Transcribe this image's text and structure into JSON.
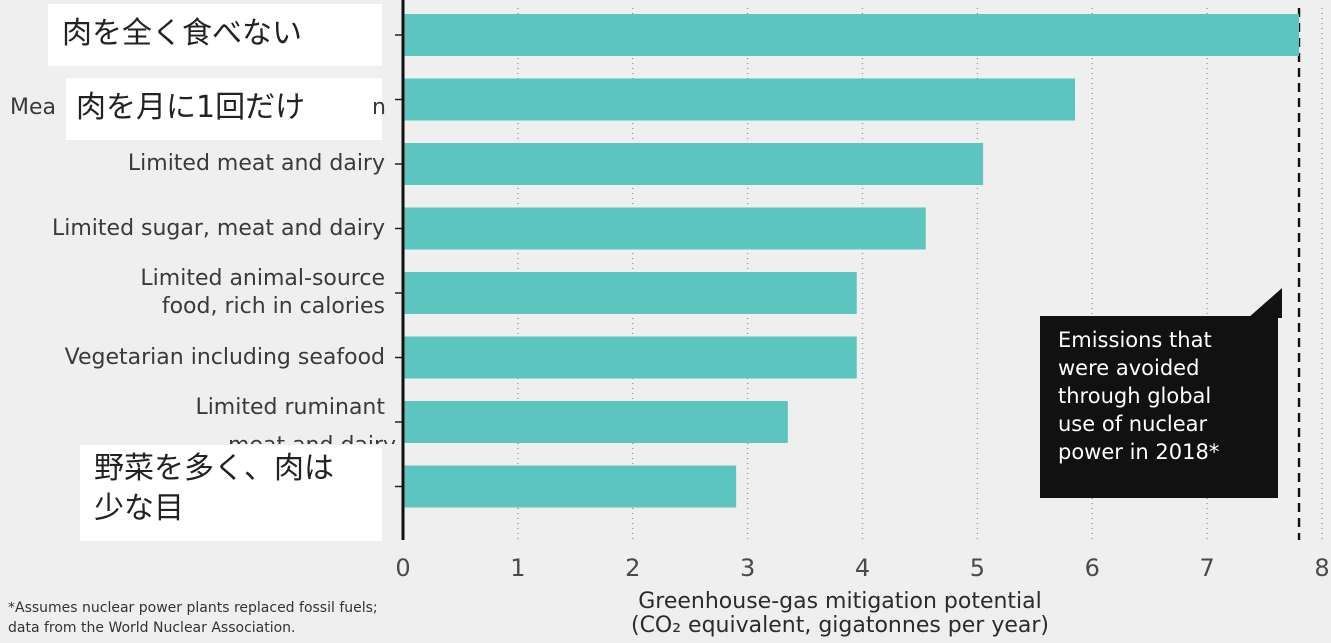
{
  "chart_data": {
    "type": "bar",
    "orientation": "horizontal",
    "categories": [
      "肉を全く食べない",
      "肉を月に1回だけ",
      "Limited meat and dairy",
      "Limited sugar, meat and dairy",
      "Limited animal-source\nfood, rich in calories",
      "Vegetarian including seafood",
      "Limited ruminant\nmeat and dairy",
      "野菜を多く、肉は\n少な目"
    ],
    "values": [
      7.8,
      5.85,
      5.05,
      4.55,
      3.95,
      3.95,
      3.35,
      2.9
    ],
    "xlim": [
      0,
      8
    ],
    "xticks": [
      "0",
      "1",
      "2",
      "3",
      "4",
      "5",
      "6",
      "7",
      "8"
    ],
    "xlabel": "Greenhouse-gas mitigation potential\n(CO₂ equivalent, gigatonnes per year)",
    "reference_line": {
      "value": 7.8,
      "style": "dashed"
    },
    "annotation": "Emissions that\nwere avoided\nthrough global\nuse of nuclear\npower in 2018*",
    "footnote": "*Assumes nuclear power plants replaced fossil fuels;\ndata from the World Nuclear Association.",
    "grid": "vertical dotted",
    "bar_color": "#5cc5bf"
  },
  "overlays": {
    "top1": "肉を全く食べない",
    "top2": "肉を月に1回だけ",
    "bottom": "野菜を多く、肉は\n少な目"
  },
  "partial_labels": {
    "row2_prefix": "Mea",
    "row2_suffix": "n",
    "row7_line2_clipped": "meat and dairy"
  }
}
